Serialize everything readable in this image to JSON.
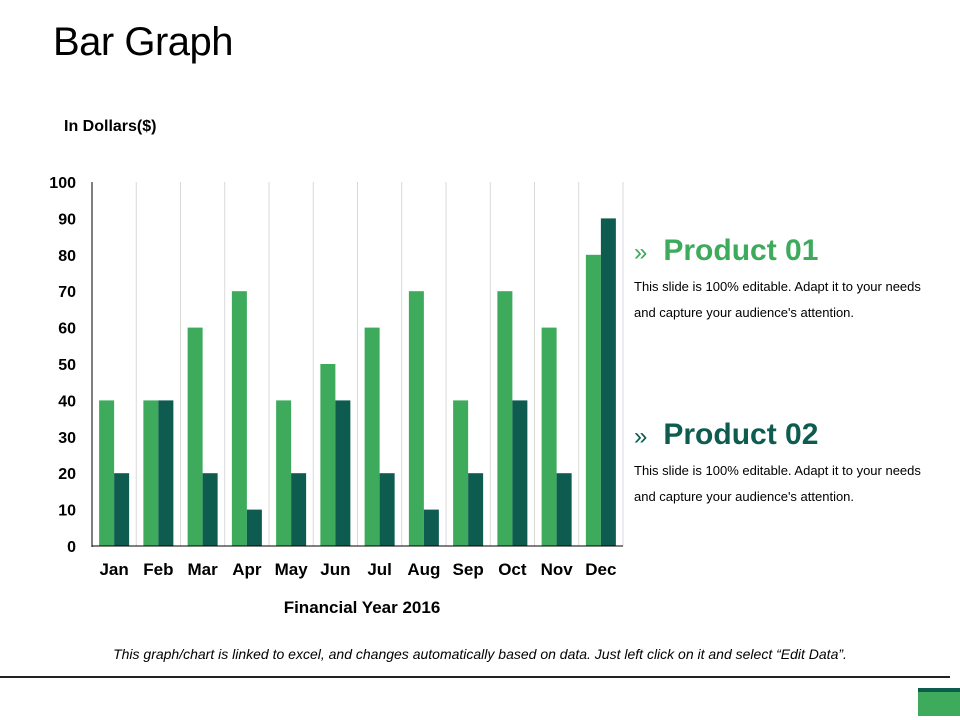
{
  "slide": {
    "title": "Bar Graph",
    "footnote": "This graph/chart is linked to excel, and changes automatically based on data. Just left click on it and select “Edit Data”."
  },
  "colors": {
    "product1": "#3daa5c",
    "product2": "#0d5c4f",
    "corner_dark": "#0d5c4f",
    "corner_light": "#3daa5c"
  },
  "legend": [
    {
      "arrow": "»",
      "name": "Product 01",
      "description": "This slide is 100% editable. Adapt it to your needs and capture your audience's attention.",
      "color": "#3daa5c"
    },
    {
      "arrow": "»",
      "name": "Product 02",
      "description": "This slide is 100% editable. Adapt it to your needs and capture your audience's attention.",
      "color": "#0d5c4f"
    }
  ],
  "chart_data": {
    "type": "bar",
    "title": "",
    "xlabel": "Financial Year 2016",
    "ylabel": "In Dollars($)",
    "categories": [
      "Jan",
      "Feb",
      "Mar",
      "Apr",
      "May",
      "Jun",
      "Jul",
      "Aug",
      "Sep",
      "Oct",
      "Nov",
      "Dec"
    ],
    "series": [
      {
        "name": "Product 01",
        "values": [
          40,
          40,
          60,
          70,
          40,
          50,
          60,
          70,
          40,
          70,
          60,
          80
        ]
      },
      {
        "name": "Product 02",
        "values": [
          20,
          40,
          20,
          10,
          20,
          40,
          20,
          10,
          20,
          40,
          20,
          90
        ]
      }
    ],
    "ylim": [
      0,
      100
    ],
    "yticks": [
      0,
      10,
      20,
      30,
      40,
      50,
      60,
      70,
      80,
      90,
      100
    ],
    "grid": "vertical",
    "legend_position": "right"
  }
}
